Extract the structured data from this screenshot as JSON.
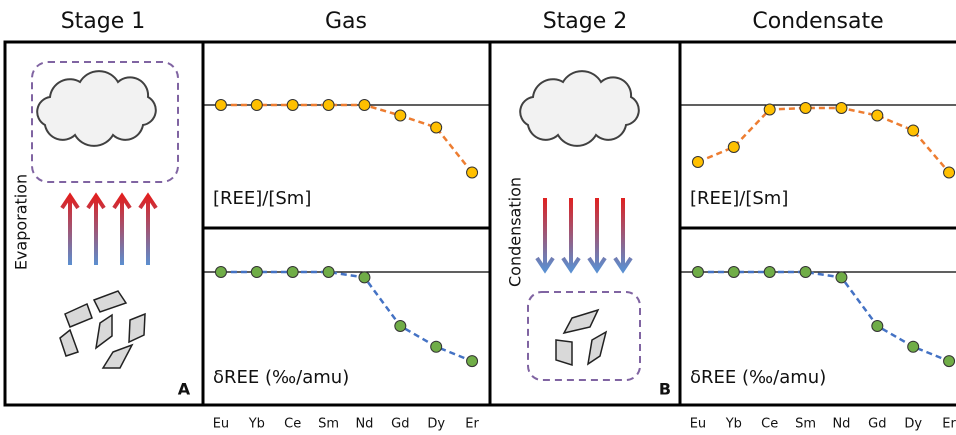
{
  "panels": [
    {
      "title": "Stage 1",
      "process": "Evaporation",
      "letter": "A"
    },
    {
      "title": "Stage 2",
      "process": "Condensation",
      "letter": "B"
    }
  ],
  "chart_data": [
    {
      "type": "line",
      "title": "Gas",
      "ylabel": "[REE]/[Sm]",
      "reference": 1,
      "ylim": [
        0.4,
        1.2
      ],
      "series": [
        {
          "color": "#ed7d31",
          "marker_color": "#ffc000",
          "values": [
            1,
            1,
            1,
            1,
            1,
            0.93,
            0.85,
            0.55
          ]
        }
      ]
    },
    {
      "type": "line",
      "ylabel": "δREE (‰/amu)",
      "reference": 0,
      "ylim": [
        -1.2,
        0.3
      ],
      "categories": [
        "Eu",
        "Yb",
        "Ce",
        "Sm",
        "Nd",
        "Gd",
        "Dy",
        "Er"
      ],
      "series": [
        {
          "color": "#4472c4",
          "marker_color": "#70ad47",
          "values": [
            0,
            0,
            0,
            0,
            -0.06,
            -0.6,
            -0.83,
            -0.99
          ]
        }
      ]
    },
    {
      "type": "line",
      "title": "Condensate",
      "ylabel": "[REE]/[Sm]",
      "reference": 1,
      "ylim": [
        0.4,
        1.2
      ],
      "series": [
        {
          "color": "#ed7d31",
          "marker_color": "#ffc000",
          "values": [
            0.62,
            0.72,
            0.97,
            0.98,
            0.98,
            0.93,
            0.83,
            0.55
          ]
        }
      ]
    },
    {
      "type": "line",
      "ylabel": "δREE (‰/amu)",
      "reference": 0,
      "ylim": [
        -1.2,
        0.3
      ],
      "categories": [
        "Eu",
        "Yb",
        "Ce",
        "Sm",
        "Nd",
        "Gd",
        "Dy",
        "Er"
      ],
      "series": [
        {
          "color": "#4472c4",
          "marker_color": "#70ad47",
          "values": [
            0,
            0,
            0,
            0,
            -0.06,
            -0.6,
            -0.83,
            -0.99
          ]
        }
      ]
    }
  ]
}
